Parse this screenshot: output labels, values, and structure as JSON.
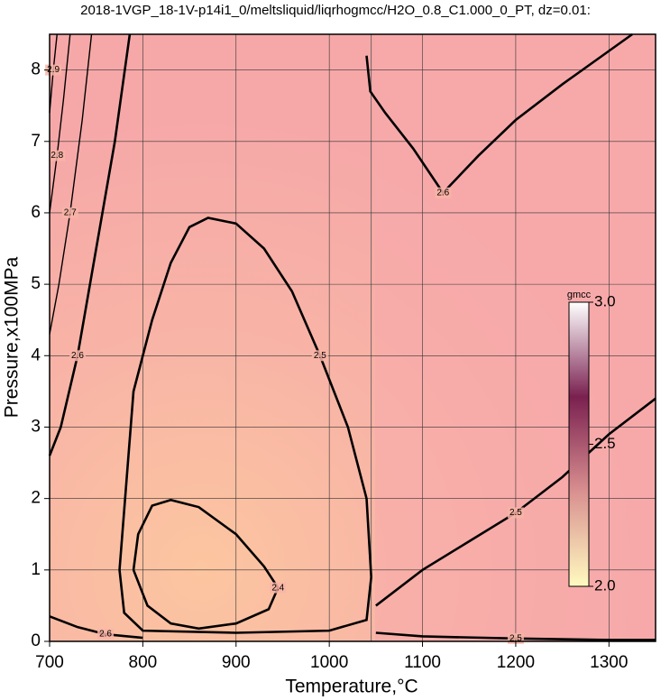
{
  "chart_data": {
    "type": "contour",
    "title": "2018-1VGP_18-1V-p14i1_0/meltsliquid/liqrhogmcc/H2O_0.8_C1.000_0_PT, dz=0.01:",
    "x_label": "Temperature,°C",
    "y_label": "Pressure,x100MPa",
    "xlim": [
      700,
      1350
    ],
    "ylim": [
      0,
      8.5
    ],
    "xticks": [
      700,
      800,
      900,
      1000,
      1100,
      1200,
      1300
    ],
    "yticks": [
      0,
      1,
      2,
      3,
      4,
      5,
      6,
      7,
      8
    ],
    "grid": true,
    "line_color": "#000000",
    "contours": [
      {
        "level": 2.4,
        "x": [
          790,
          795,
          810,
          830,
          860,
          900,
          930,
          945,
          935,
          900,
          860,
          830,
          805,
          790
        ],
        "y": [
          1.0,
          1.5,
          1.9,
          1.98,
          1.88,
          1.5,
          1.05,
          0.75,
          0.45,
          0.25,
          0.18,
          0.25,
          0.5,
          1.0
        ]
      },
      {
        "level": 2.5,
        "x": [
          775,
          790,
          810,
          830,
          850,
          870,
          900,
          930,
          960,
          990,
          1020,
          1040,
          1045,
          1040,
          1000,
          900,
          800,
          780,
          775
        ],
        "y": [
          1.0,
          3.5,
          4.5,
          5.3,
          5.8,
          5.93,
          5.85,
          5.5,
          4.9,
          4.0,
          3.0,
          2.0,
          0.9,
          0.3,
          0.15,
          0.12,
          0.15,
          0.4,
          1.0
        ]
      },
      {
        "level": 2.5,
        "x": [
          1050,
          1100,
          1150,
          1200,
          1250,
          1300,
          1350
        ],
        "y": [
          0.5,
          1.0,
          1.4,
          1.8,
          2.3,
          2.9,
          3.4
        ]
      },
      {
        "level": 2.5,
        "x": [
          1050,
          1100,
          1200,
          1300,
          1350
        ],
        "y": [
          0.12,
          0.07,
          0.04,
          0.02,
          0.02
        ]
      },
      {
        "level": 2.6,
        "x": [
          1040,
          1044,
          1060,
          1090,
          1122,
          1160,
          1200,
          1250,
          1325
        ],
        "y": [
          8.2,
          7.7,
          7.4,
          6.9,
          6.28,
          6.8,
          7.3,
          7.8,
          8.5
        ]
      },
      {
        "level": 2.6,
        "x": [
          786,
          770,
          750,
          730,
          712,
          700
        ],
        "y": [
          8.5,
          7.0,
          5.5,
          4.0,
          3.0,
          2.6
        ]
      },
      {
        "level": 2.6,
        "x": [
          700,
          730,
          760,
          800
        ],
        "y": [
          0.35,
          0.2,
          0.1,
          0.05
        ]
      },
      {
        "level": 2.7,
        "x": [
          745,
          735,
          722,
          710,
          700
        ],
        "y": [
          8.5,
          7.3,
          6.0,
          5.0,
          4.3
        ]
      },
      {
        "level": 2.8,
        "x": [
          722,
          715,
          708,
          700
        ],
        "y": [
          8.5,
          7.6,
          6.8,
          6.0
        ]
      },
      {
        "level": 2.9,
        "x": [
          708,
          704,
          700
        ],
        "y": [
          8.5,
          8.0,
          7.4
        ]
      }
    ],
    "colorbar": {
      "label": "gmcc",
      "lim": [
        2,
        3
      ],
      "ticks": [
        {
          "value": 2,
          "label": "2.0"
        },
        2.5,
        {
          "value": 3,
          "label": "3.0"
        }
      ],
      "colors": [
        "#fffbc0",
        "#d99090",
        "#7a2050",
        "#ffffff"
      ]
    }
  }
}
